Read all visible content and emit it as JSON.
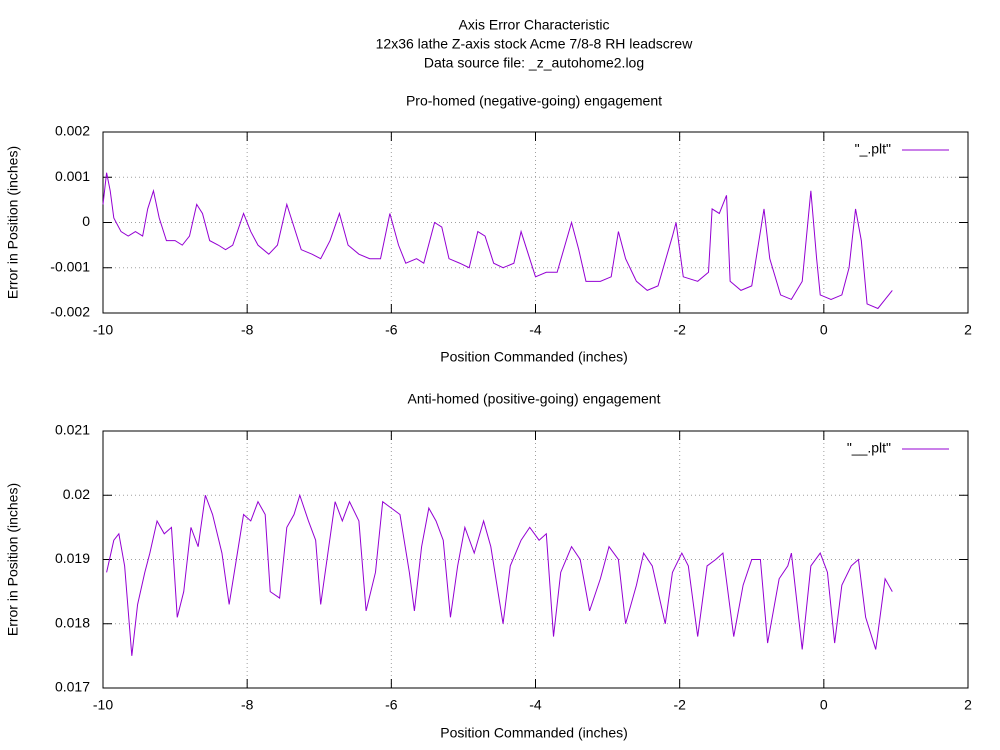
{
  "header": {
    "title": "Axis Error Characteristic",
    "subtitle": "12x36 lathe Z-axis stock Acme 7/8-8 RH leadscrew",
    "source": "Data source file: _z_autohome2.log"
  },
  "chart_data": [
    {
      "type": "line",
      "title": "Pro-homed (negative-going) engagement",
      "xlabel": "Position Commanded (inches)",
      "ylabel": "Error in Position (inches)",
      "x": [
        -10.0,
        -9.95,
        -9.9,
        -9.85,
        -9.75,
        -9.65,
        -9.55,
        -9.45,
        -9.38,
        -9.3,
        -9.22,
        -9.12,
        -9.0,
        -8.9,
        -8.8,
        -8.7,
        -8.62,
        -8.52,
        -8.4,
        -8.3,
        -8.2,
        -8.05,
        -7.95,
        -7.85,
        -7.7,
        -7.58,
        -7.45,
        -7.35,
        -7.25,
        -7.1,
        -6.98,
        -6.85,
        -6.72,
        -6.6,
        -6.45,
        -6.3,
        -6.15,
        -6.02,
        -5.9,
        -5.8,
        -5.65,
        -5.55,
        -5.4,
        -5.3,
        -5.2,
        -5.05,
        -4.92,
        -4.8,
        -4.7,
        -4.58,
        -4.45,
        -4.3,
        -4.2,
        -4.1,
        -4.0,
        -3.85,
        -3.7,
        -3.5,
        -3.4,
        -3.3,
        -3.1,
        -2.95,
        -2.85,
        -2.75,
        -2.6,
        -2.45,
        -2.3,
        -2.1,
        -2.05,
        -1.95,
        -1.75,
        -1.6,
        -1.55,
        -1.45,
        -1.35,
        -1.3,
        -1.15,
        -1.0,
        -0.83,
        -0.75,
        -0.6,
        -0.45,
        -0.3,
        -0.18,
        -0.1,
        -0.05,
        0.1,
        0.25,
        0.35,
        0.44,
        0.52,
        0.6,
        0.75,
        0.85,
        0.95
      ],
      "series": [
        {
          "name": "\"_.plt\"",
          "color": "#9400d3",
          "values": [
            0.0004,
            0.0011,
            0.0007,
            0.0001,
            -0.0002,
            -0.0003,
            -0.0002,
            -0.0003,
            0.0003,
            0.0007,
            0.0001,
            -0.0004,
            -0.0004,
            -0.0005,
            -0.0003,
            0.0004,
            0.0002,
            -0.0004,
            -0.0005,
            -0.0006,
            -0.0005,
            0.0002,
            -0.0002,
            -0.0005,
            -0.0007,
            -0.0005,
            0.0004,
            -0.0001,
            -0.0006,
            -0.0007,
            -0.0008,
            -0.0004,
            0.0002,
            -0.0005,
            -0.0007,
            -0.0008,
            -0.0008,
            0.0002,
            -0.0005,
            -0.0009,
            -0.0008,
            -0.0009,
            0.0,
            -0.0001,
            -0.0008,
            -0.0009,
            -0.001,
            -0.0002,
            -0.0003,
            -0.0009,
            -0.001,
            -0.0009,
            -0.0002,
            -0.0007,
            -0.0012,
            -0.0011,
            -0.0011,
            0.0,
            -0.0006,
            -0.0013,
            -0.0013,
            -0.0012,
            -0.0002,
            -0.0008,
            -0.0013,
            -0.0015,
            -0.0014,
            -0.0003,
            0.0,
            -0.0012,
            -0.0013,
            -0.0011,
            0.0003,
            0.0002,
            0.0006,
            -0.0013,
            -0.0015,
            -0.0014,
            0.0003,
            -0.0008,
            -0.0016,
            -0.0017,
            -0.0013,
            0.0007,
            -0.0008,
            -0.0016,
            -0.0017,
            -0.0016,
            -0.001,
            0.0003,
            -0.0004,
            -0.0018,
            -0.0019,
            -0.0017,
            -0.0015
          ]
        }
      ],
      "xlim": [
        -10,
        2
      ],
      "ylim": [
        -0.002,
        0.002
      ],
      "xticks": [
        -10,
        -8,
        -6,
        -4,
        -2,
        0,
        2
      ],
      "yticks": [
        -0.002,
        -0.001,
        0,
        0.001,
        0.002
      ],
      "grid": true,
      "legend": "upper right"
    },
    {
      "type": "line",
      "title": "Anti-homed (positive-going) engagement",
      "xlabel": "Position Commanded (inches)",
      "ylabel": "Error in Position (inches)",
      "x": [
        -9.95,
        -9.85,
        -9.78,
        -9.7,
        -9.6,
        -9.52,
        -9.42,
        -9.35,
        -9.25,
        -9.15,
        -9.05,
        -8.97,
        -8.88,
        -8.78,
        -8.68,
        -8.58,
        -8.48,
        -8.35,
        -8.25,
        -8.15,
        -8.05,
        -7.95,
        -7.85,
        -7.75,
        -7.68,
        -7.55,
        -7.45,
        -7.35,
        -7.27,
        -7.15,
        -7.05,
        -6.98,
        -6.88,
        -6.78,
        -6.68,
        -6.58,
        -6.45,
        -6.35,
        -6.22,
        -6.12,
        -6.0,
        -5.88,
        -5.75,
        -5.68,
        -5.58,
        -5.48,
        -5.38,
        -5.28,
        -5.18,
        -5.08,
        -4.98,
        -4.85,
        -4.72,
        -4.62,
        -4.45,
        -4.35,
        -4.2,
        -4.08,
        -3.95,
        -3.85,
        -3.75,
        -3.65,
        -3.5,
        -3.38,
        -3.25,
        -3.1,
        -2.98,
        -2.85,
        -2.75,
        -2.6,
        -2.5,
        -2.38,
        -2.2,
        -2.1,
        -1.97,
        -1.88,
        -1.75,
        -1.62,
        -1.5,
        -1.4,
        -1.25,
        -1.12,
        -1.0,
        -0.88,
        -0.78,
        -0.62,
        -0.5,
        -0.45,
        -0.3,
        -0.18,
        -0.05,
        0.05,
        0.15,
        0.25,
        0.38,
        0.48,
        0.58,
        0.72,
        0.85,
        0.95
      ],
      "series": [
        {
          "name": "\"__.plt\"",
          "color": "#9400d3",
          "values": [
            0.0188,
            0.0193,
            0.0194,
            0.0189,
            0.0175,
            0.0183,
            0.0188,
            0.0191,
            0.0196,
            0.0194,
            0.0195,
            0.0181,
            0.0185,
            0.0195,
            0.0192,
            0.02,
            0.0197,
            0.0191,
            0.0183,
            0.019,
            0.0197,
            0.0196,
            0.0199,
            0.0197,
            0.0185,
            0.0184,
            0.0195,
            0.0197,
            0.02,
            0.0196,
            0.0193,
            0.0183,
            0.0191,
            0.0199,
            0.0196,
            0.0199,
            0.0196,
            0.0182,
            0.0188,
            0.0199,
            0.0198,
            0.0197,
            0.0188,
            0.0182,
            0.0192,
            0.0198,
            0.0196,
            0.0193,
            0.0181,
            0.0189,
            0.0195,
            0.0191,
            0.0196,
            0.0192,
            0.018,
            0.0189,
            0.0193,
            0.0195,
            0.0193,
            0.0194,
            0.0178,
            0.0188,
            0.0192,
            0.019,
            0.0182,
            0.0187,
            0.0192,
            0.019,
            0.018,
            0.0186,
            0.0191,
            0.0189,
            0.018,
            0.0188,
            0.0191,
            0.0189,
            0.0178,
            0.0189,
            0.019,
            0.0191,
            0.0178,
            0.0186,
            0.019,
            0.019,
            0.0177,
            0.0187,
            0.0189,
            0.0191,
            0.0176,
            0.0189,
            0.0191,
            0.0188,
            0.0177,
            0.0186,
            0.0189,
            0.019,
            0.0181,
            0.0176,
            0.0187,
            0.0185
          ]
        }
      ],
      "xlim": [
        -10,
        2
      ],
      "ylim": [
        0.017,
        0.021
      ],
      "xticks": [
        -10,
        -8,
        -6,
        -4,
        -2,
        0,
        2
      ],
      "yticks": [
        0.017,
        0.018,
        0.019,
        0.02,
        0.021
      ],
      "grid": true,
      "legend": "upper right"
    }
  ]
}
